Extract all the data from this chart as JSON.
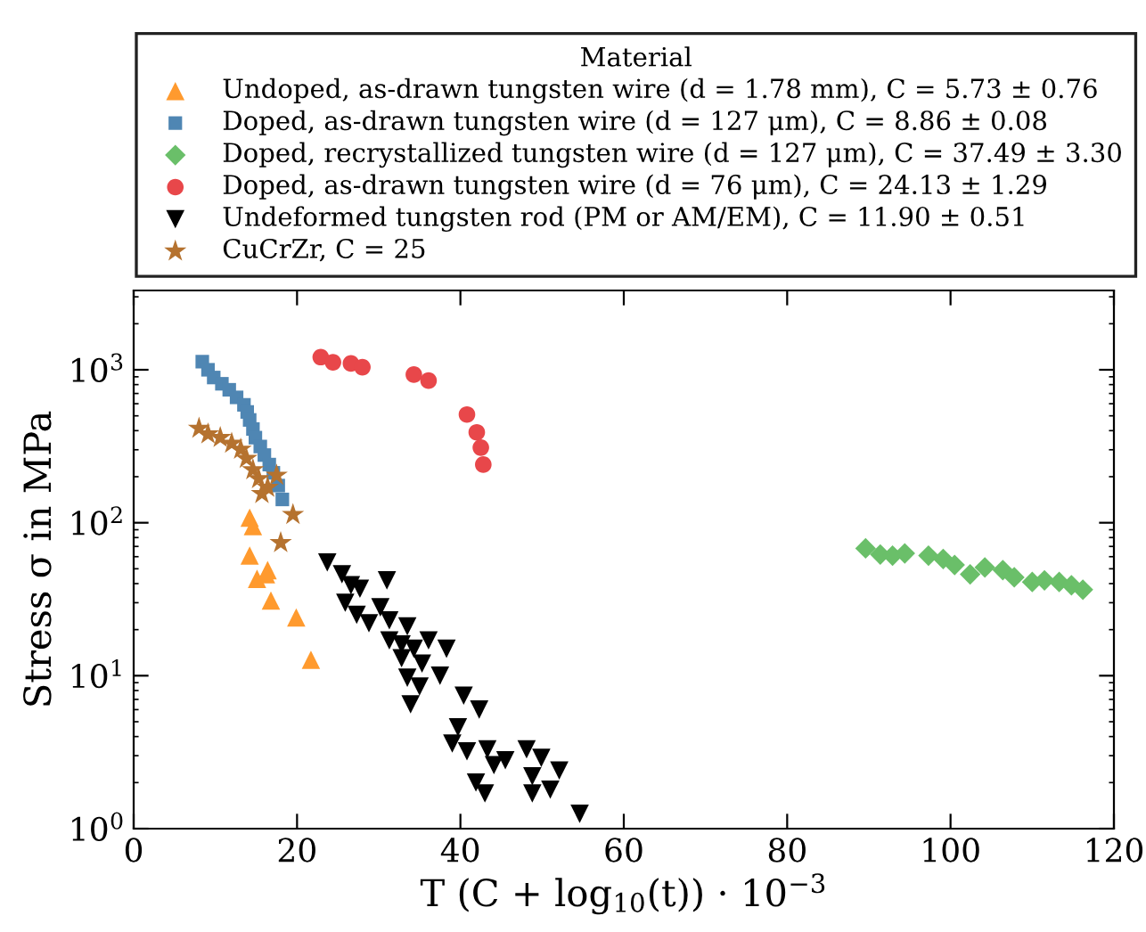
{
  "chart_data": {
    "type": "scatter",
    "xlabel": "T (C + log$_{10}$(t)) · 10$^{−3}$",
    "ylabel": "Stress σ in MPa",
    "legend_title": "Material",
    "legend": "top",
    "log": "y",
    "grid": false,
    "xlim": [
      0,
      120
    ],
    "xticks": [
      0,
      20,
      40,
      60,
      80,
      100,
      120
    ],
    "ylim": [
      1,
      3300
    ],
    "yticks": [
      {
        "value": 1,
        "label": "10$^{0}$"
      },
      {
        "value": 10,
        "label": "10$^{1}$"
      },
      {
        "value": 100,
        "label": "10$^{2}$"
      },
      {
        "value": 1000,
        "label": "10$^{3}$"
      }
    ],
    "series": [
      {
        "name": "Undoped, as-drawn tungsten wire (d = 1.78 mm), C = 5.73 ± 0.76",
        "color": "#ff9a2e",
        "marker": "triangle",
        "x": [
          14.2,
          14.6,
          14.2,
          16.4,
          15.1,
          16.2,
          16.8,
          19.9,
          21.7
        ],
        "values": [
          108,
          95,
          61,
          49,
          43,
          46,
          31,
          24,
          12.7
        ]
      },
      {
        "name": "Doped, as-drawn tungsten wire (d = 127 μm), C = 8.86 ± 0.08",
        "color": "#4f86b3",
        "marker": "square",
        "x": [
          8.4,
          9.1,
          9.8,
          10.8,
          11.7,
          12.6,
          13.5,
          13.9,
          14.2,
          14.6,
          14.9,
          15.5,
          16.0,
          16.6,
          17.1,
          17.7,
          18.2
        ],
        "values": [
          1130,
          1000,
          890,
          810,
          740,
          660,
          590,
          530,
          470,
          410,
          360,
          315,
          277,
          240,
          212,
          175,
          142
        ]
      },
      {
        "name": "Doped, recrystallized tungsten wire (d = 127 μm), C = 37.49 ± 3.30",
        "color": "#6abf69",
        "marker": "diamond",
        "x": [
          89.6,
          91.4,
          92.9,
          94.4,
          97.3,
          99.1,
          100.5,
          102.4,
          104.2,
          106.4,
          107.8,
          110.0,
          111.5,
          113.3,
          114.8,
          116.2
        ],
        "values": [
          68,
          62,
          61,
          63,
          61,
          58,
          53,
          46,
          51,
          49,
          44,
          41,
          42,
          41,
          39,
          36.5
        ]
      },
      {
        "name": "Doped, as-drawn tungsten wire (d = 76 μm), C = 24.13 ± 1.29",
        "color": "#e8474a",
        "marker": "circle",
        "x": [
          22.9,
          24.4,
          26.6,
          28.0,
          34.3,
          36.1,
          40.8,
          42.0,
          42.5,
          42.8
        ],
        "values": [
          1210,
          1120,
          1100,
          1040,
          930,
          850,
          510,
          390,
          310,
          240
        ]
      },
      {
        "name": "Undeformed tungsten rod (PM or AM/EM), C = 11.90 ± 0.51",
        "color": "#000000",
        "marker": "triangle_down",
        "x": [
          23.7,
          25.5,
          26.6,
          27.7,
          31.0,
          25.9,
          27.3,
          28.8,
          30.2,
          31.3,
          33.5,
          31.3,
          32.8,
          34.3,
          36.1,
          38.3,
          32.8,
          35.3,
          37.5,
          33.5,
          35.0,
          33.9,
          40.4,
          42.3,
          39.7,
          39.0,
          40.8,
          43.3,
          45.5,
          44.1,
          48.1,
          49.9,
          52.1,
          48.8,
          41.9,
          43.0,
          51.0,
          48.8,
          54.6
        ],
        "values": [
          55,
          46,
          39,
          37,
          42,
          30,
          25,
          22,
          28,
          23,
          21,
          17,
          16,
          15,
          17,
          15,
          13,
          12,
          10,
          9.7,
          8.5,
          6.5,
          7.4,
          6.0,
          4.6,
          3.6,
          3.2,
          3.3,
          2.8,
          2.6,
          3.3,
          2.9,
          2.4,
          2.2,
          2.0,
          1.7,
          1.8,
          1.7,
          1.25
        ]
      },
      {
        "name": "CuCrZr, C = 25",
        "color": "#b5722f",
        "marker": "star",
        "x": [
          8.0,
          9.1,
          10.6,
          12.0,
          13.1,
          13.8,
          14.6,
          15.3,
          16.4,
          17.5,
          15.7,
          19.5,
          18.0
        ],
        "values": [
          414,
          380,
          360,
          330,
          302,
          263,
          222,
          194,
          170,
          204,
          155,
          113,
          74
        ]
      }
    ]
  }
}
